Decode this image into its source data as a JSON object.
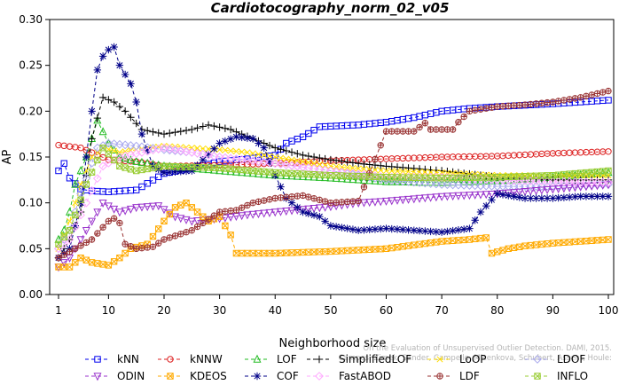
{
  "chart_data": {
    "type": "line",
    "title": "Cardiotocography_norm_02_v05",
    "xlabel": "Neighborhood size",
    "ylabel": "AP",
    "xlim": [
      1,
      100
    ],
    "ylim": [
      0.0,
      0.3
    ],
    "x_ticks": [
      "1",
      "10",
      "20",
      "30",
      "40",
      "50",
      "60",
      "70",
      "80",
      "90",
      "100"
    ],
    "y_ticks": [
      "0.00",
      "0.05",
      "0.10",
      "0.15",
      "0.20",
      "0.25",
      "0.30"
    ],
    "grid": false,
    "legend_position": "bottom",
    "watermark": "Campos, Zimek, Sander, Campello, Micenkova, Schubert, Assent, Houle: On the Evaluation of Unsupervised Outlier Detection. DAMI, 2015.",
    "series": [
      {
        "name": "kNN",
        "color": "#0000ee",
        "marker": "square",
        "points": [
          [
            1,
            0.135
          ],
          [
            2,
            0.143
          ],
          [
            3,
            0.127
          ],
          [
            5,
            0.115
          ],
          [
            7,
            0.113
          ],
          [
            10,
            0.112
          ],
          [
            15,
            0.114
          ],
          [
            20,
            0.132
          ],
          [
            25,
            0.138
          ],
          [
            30,
            0.145
          ],
          [
            35,
            0.148
          ],
          [
            40,
            0.152
          ],
          [
            42,
            0.165
          ],
          [
            45,
            0.172
          ],
          [
            48,
            0.183
          ],
          [
            55,
            0.185
          ],
          [
            60,
            0.188
          ],
          [
            65,
            0.193
          ],
          [
            70,
            0.2
          ],
          [
            75,
            0.203
          ],
          [
            80,
            0.205
          ],
          [
            90,
            0.208
          ],
          [
            100,
            0.212
          ]
        ]
      },
      {
        "name": "kNNW",
        "color": "#dd2222",
        "marker": "circle",
        "points": [
          [
            1,
            0.163
          ],
          [
            5,
            0.16
          ],
          [
            10,
            0.147
          ],
          [
            15,
            0.145
          ],
          [
            20,
            0.14
          ],
          [
            30,
            0.141
          ],
          [
            40,
            0.143
          ],
          [
            50,
            0.146
          ],
          [
            60,
            0.148
          ],
          [
            70,
            0.15
          ],
          [
            80,
            0.151
          ],
          [
            90,
            0.154
          ],
          [
            100,
            0.156
          ]
        ]
      },
      {
        "name": "LOF",
        "color": "#22bb22",
        "marker": "triangle",
        "points": [
          [
            1,
            0.06
          ],
          [
            2,
            0.07
          ],
          [
            3,
            0.09
          ],
          [
            4,
            0.12
          ],
          [
            6,
            0.15
          ],
          [
            8,
            0.19
          ],
          [
            10,
            0.165
          ],
          [
            12,
            0.15
          ],
          [
            15,
            0.145
          ],
          [
            20,
            0.14
          ],
          [
            30,
            0.135
          ],
          [
            40,
            0.13
          ],
          [
            50,
            0.127
          ],
          [
            60,
            0.123
          ],
          [
            70,
            0.122
          ],
          [
            80,
            0.124
          ],
          [
            90,
            0.128
          ],
          [
            100,
            0.133
          ]
        ]
      },
      {
        "name": "SimplifiedLOF",
        "color": "#000000",
        "marker": "plus",
        "points": [
          [
            1,
            0.04
          ],
          [
            3,
            0.06
          ],
          [
            5,
            0.09
          ],
          [
            7,
            0.17
          ],
          [
            9,
            0.215
          ],
          [
            11,
            0.21
          ],
          [
            13,
            0.2
          ],
          [
            16,
            0.18
          ],
          [
            20,
            0.175
          ],
          [
            25,
            0.18
          ],
          [
            28,
            0.185
          ],
          [
            32,
            0.18
          ],
          [
            36,
            0.17
          ],
          [
            40,
            0.16
          ],
          [
            45,
            0.152
          ],
          [
            50,
            0.147
          ],
          [
            55,
            0.143
          ],
          [
            60,
            0.14
          ],
          [
            70,
            0.135
          ],
          [
            80,
            0.128
          ],
          [
            90,
            0.125
          ],
          [
            100,
            0.125
          ]
        ]
      },
      {
        "name": "LoOP",
        "color": "#ffdd00",
        "marker": "x",
        "points": [
          [
            1,
            0.05
          ],
          [
            3,
            0.08
          ],
          [
            5,
            0.12
          ],
          [
            7,
            0.15
          ],
          [
            9,
            0.16
          ],
          [
            12,
            0.155
          ],
          [
            15,
            0.158
          ],
          [
            20,
            0.162
          ],
          [
            25,
            0.16
          ],
          [
            30,
            0.158
          ],
          [
            35,
            0.155
          ],
          [
            40,
            0.15
          ],
          [
            45,
            0.145
          ],
          [
            50,
            0.14
          ],
          [
            60,
            0.135
          ],
          [
            70,
            0.133
          ],
          [
            80,
            0.13
          ],
          [
            90,
            0.13
          ],
          [
            100,
            0.13
          ]
        ]
      },
      {
        "name": "LDOF",
        "color": "#aaaaee",
        "marker": "diamond",
        "points": [
          [
            1,
            0.05
          ],
          [
            3,
            0.07
          ],
          [
            5,
            0.11
          ],
          [
            8,
            0.16
          ],
          [
            10,
            0.165
          ],
          [
            15,
            0.162
          ],
          [
            20,
            0.158
          ],
          [
            25,
            0.155
          ],
          [
            30,
            0.15
          ],
          [
            40,
            0.143
          ],
          [
            50,
            0.135
          ],
          [
            60,
            0.125
          ],
          [
            70,
            0.12
          ],
          [
            80,
            0.118
          ],
          [
            90,
            0.118
          ],
          [
            100,
            0.12
          ]
        ]
      },
      {
        "name": "ODIN",
        "color": "#9933cc",
        "marker": "triangle-down",
        "points": [
          [
            1,
            0.03
          ],
          [
            3,
            0.04
          ],
          [
            6,
            0.07
          ],
          [
            9,
            0.1
          ],
          [
            12,
            0.09
          ],
          [
            15,
            0.095
          ],
          [
            19,
            0.097
          ],
          [
            22,
            0.085
          ],
          [
            25,
            0.08
          ],
          [
            30,
            0.083
          ],
          [
            35,
            0.087
          ],
          [
            40,
            0.09
          ],
          [
            45,
            0.093
          ],
          [
            50,
            0.096
          ],
          [
            55,
            0.1
          ],
          [
            60,
            0.102
          ],
          [
            70,
            0.107
          ],
          [
            80,
            0.11
          ],
          [
            90,
            0.115
          ],
          [
            100,
            0.12
          ]
        ]
      },
      {
        "name": "KDEOS",
        "color": "#ffaa00",
        "marker": "square-x",
        "points": [
          [
            1,
            0.03
          ],
          [
            3,
            0.03
          ],
          [
            5,
            0.04
          ],
          [
            7,
            0.035
          ],
          [
            10,
            0.032
          ],
          [
            12,
            0.04
          ],
          [
            14,
            0.05
          ],
          [
            17,
            0.055
          ],
          [
            20,
            0.08
          ],
          [
            22,
            0.095
          ],
          [
            24,
            0.1
          ],
          [
            26,
            0.09
          ],
          [
            28,
            0.08
          ],
          [
            30,
            0.085
          ],
          [
            32,
            0.065
          ],
          [
            33,
            0.045
          ],
          [
            40,
            0.045
          ],
          [
            50,
            0.047
          ],
          [
            60,
            0.05
          ],
          [
            70,
            0.058
          ],
          [
            75,
            0.06
          ],
          [
            78,
            0.062
          ],
          [
            79,
            0.045
          ],
          [
            82,
            0.05
          ],
          [
            85,
            0.053
          ],
          [
            90,
            0.056
          ],
          [
            95,
            0.058
          ],
          [
            100,
            0.06
          ]
        ]
      },
      {
        "name": "COF",
        "color": "#000088",
        "marker": "asterisk",
        "points": [
          [
            1,
            0.04
          ],
          [
            3,
            0.05
          ],
          [
            5,
            0.1
          ],
          [
            7,
            0.2
          ],
          [
            8,
            0.245
          ],
          [
            9,
            0.26
          ],
          [
            10,
            0.267
          ],
          [
            11,
            0.27
          ],
          [
            12,
            0.25
          ],
          [
            13,
            0.24
          ],
          [
            14,
            0.23
          ],
          [
            15,
            0.21
          ],
          [
            16,
            0.175
          ],
          [
            18,
            0.14
          ],
          [
            20,
            0.133
          ],
          [
            25,
            0.135
          ],
          [
            30,
            0.165
          ],
          [
            33,
            0.172
          ],
          [
            36,
            0.17
          ],
          [
            38,
            0.16
          ],
          [
            40,
            0.13
          ],
          [
            42,
            0.105
          ],
          [
            45,
            0.09
          ],
          [
            48,
            0.085
          ],
          [
            50,
            0.075
          ],
          [
            55,
            0.07
          ],
          [
            60,
            0.072
          ],
          [
            65,
            0.07
          ],
          [
            70,
            0.068
          ],
          [
            75,
            0.072
          ],
          [
            77,
            0.09
          ],
          [
            80,
            0.11
          ],
          [
            85,
            0.105
          ],
          [
            90,
            0.105
          ],
          [
            95,
            0.107
          ],
          [
            100,
            0.107
          ]
        ]
      },
      {
        "name": "FastABOD",
        "color": "#ffaaff",
        "marker": "diamond",
        "points": [
          [
            1,
            0.05
          ],
          [
            3,
            0.06
          ],
          [
            6,
            0.1
          ],
          [
            9,
            0.14
          ],
          [
            12,
            0.15
          ],
          [
            20,
            0.16
          ],
          [
            30,
            0.15
          ],
          [
            40,
            0.143
          ],
          [
            50,
            0.135
          ],
          [
            60,
            0.128
          ],
          [
            70,
            0.128
          ],
          [
            80,
            0.125
          ],
          [
            90,
            0.123
          ],
          [
            100,
            0.122
          ]
        ]
      },
      {
        "name": "LDF",
        "color": "#993333",
        "marker": "circle-plus",
        "points": [
          [
            1,
            0.04
          ],
          [
            4,
            0.05
          ],
          [
            7,
            0.06
          ],
          [
            10,
            0.08
          ],
          [
            11,
            0.083
          ],
          [
            12,
            0.078
          ],
          [
            13,
            0.055
          ],
          [
            15,
            0.05
          ],
          [
            18,
            0.052
          ],
          [
            20,
            0.06
          ],
          [
            25,
            0.07
          ],
          [
            30,
            0.09
          ],
          [
            33,
            0.092
          ],
          [
            36,
            0.1
          ],
          [
            40,
            0.105
          ],
          [
            45,
            0.108
          ],
          [
            50,
            0.1
          ],
          [
            55,
            0.102
          ],
          [
            60,
            0.178
          ],
          [
            62,
            0.178
          ],
          [
            65,
            0.178
          ],
          [
            67,
            0.187
          ],
          [
            68,
            0.18
          ],
          [
            72,
            0.18
          ],
          [
            73,
            0.188
          ],
          [
            75,
            0.2
          ],
          [
            80,
            0.205
          ],
          [
            85,
            0.207
          ],
          [
            90,
            0.21
          ],
          [
            95,
            0.215
          ],
          [
            100,
            0.222
          ]
        ]
      },
      {
        "name": "INFLO",
        "color": "#99cc33",
        "marker": "square-x",
        "points": [
          [
            1,
            0.055
          ],
          [
            3,
            0.07
          ],
          [
            6,
            0.12
          ],
          [
            9,
            0.16
          ],
          [
            12,
            0.14
          ],
          [
            15,
            0.135
          ],
          [
            20,
            0.14
          ],
          [
            30,
            0.138
          ],
          [
            40,
            0.133
          ],
          [
            50,
            0.13
          ],
          [
            60,
            0.128
          ],
          [
            70,
            0.127
          ],
          [
            80,
            0.128
          ],
          [
            90,
            0.13
          ],
          [
            100,
            0.135
          ]
        ]
      }
    ]
  }
}
